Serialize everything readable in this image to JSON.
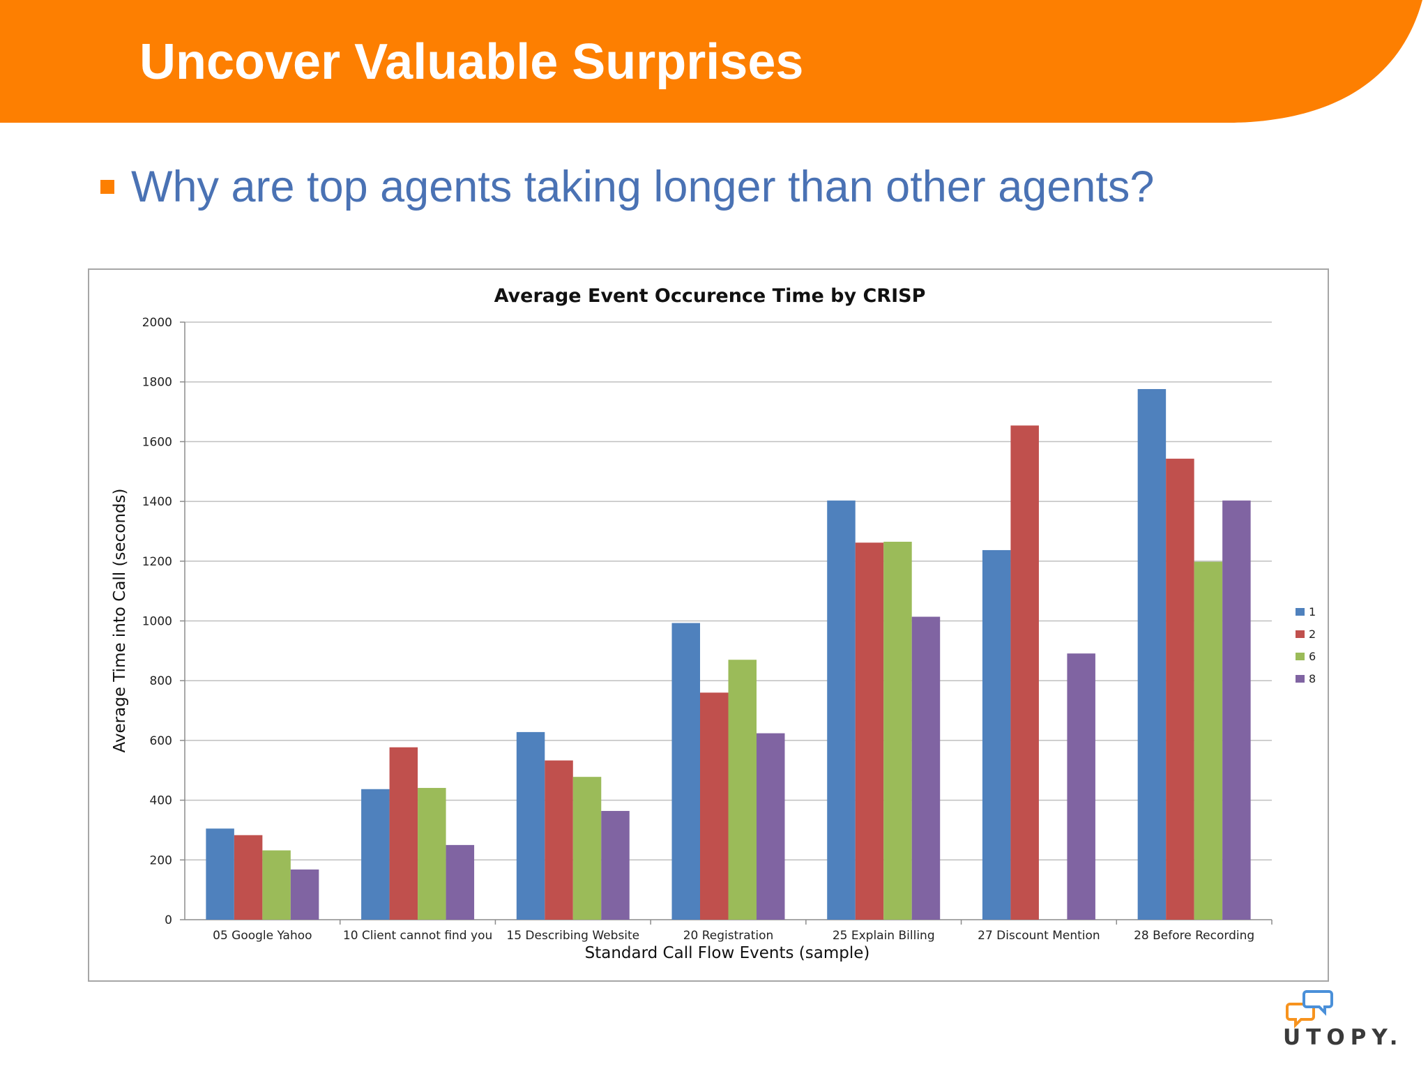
{
  "slide": {
    "title": "Uncover Valuable Surprises",
    "bullet": "Why are top agents taking longer than other agents?"
  },
  "colors": {
    "banner": "#fd7f01",
    "bullet_marker": "#fd7f01",
    "bullet_text": "#4a72b4",
    "series": [
      "#4f81bd",
      "#c0504d",
      "#9bbb59",
      "#8064a2"
    ]
  },
  "logo": {
    "text": "UTOPY.",
    "icon": "speech-bubbles-icon"
  },
  "chart_data": {
    "type": "bar",
    "title": "Average Event Occurence Time by CRISP",
    "xlabel": "Standard Call Flow Events (sample)",
    "ylabel": "Average Time into Call (seconds)",
    "ylim": [
      0,
      2000
    ],
    "yticks": [
      0,
      200,
      400,
      600,
      800,
      1000,
      1200,
      1400,
      1600,
      1800,
      2000
    ],
    "grid": true,
    "legend_position": "right",
    "categories": [
      "05 Google Yahoo",
      "10 Client cannot find you",
      "15 Describing Website",
      "20 Registration",
      "25 Explain Billing",
      "27 Discount Mention",
      "28 Before Recording"
    ],
    "series": [
      {
        "name": "1",
        "values": [
          305,
          437,
          628,
          993,
          1403,
          1237,
          1776
        ]
      },
      {
        "name": "2",
        "values": [
          283,
          577,
          533,
          760,
          1262,
          1654,
          1543
        ]
      },
      {
        "name": "6",
        "values": [
          232,
          441,
          478,
          870,
          1265,
          0,
          1198
        ]
      },
      {
        "name": "8",
        "values": [
          168,
          250,
          364,
          624,
          1014,
          891,
          1403
        ]
      }
    ]
  }
}
